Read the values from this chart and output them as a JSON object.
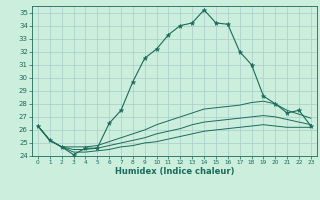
{
  "title": "",
  "xlabel": "Humidex (Indice chaleur)",
  "bg_color": "#cceedd",
  "grid_color": "#aacccc",
  "line_color": "#1a6b5a",
  "xlim": [
    -0.5,
    23.5
  ],
  "ylim": [
    24.0,
    35.5
  ],
  "yticks": [
    24,
    25,
    26,
    27,
    28,
    29,
    30,
    31,
    32,
    33,
    34,
    35
  ],
  "xticks": [
    0,
    1,
    2,
    3,
    4,
    5,
    6,
    7,
    8,
    9,
    10,
    11,
    12,
    13,
    14,
    15,
    16,
    17,
    18,
    19,
    20,
    21,
    22,
    23
  ],
  "line1_x": [
    0,
    1,
    2,
    3,
    4,
    5,
    6,
    7,
    8,
    9,
    10,
    11,
    12,
    13,
    14,
    15,
    16,
    17,
    18,
    19,
    20,
    21,
    22,
    23
  ],
  "line1_y": [
    26.3,
    25.2,
    24.7,
    24.1,
    24.6,
    24.6,
    26.5,
    27.5,
    29.7,
    31.5,
    32.2,
    33.3,
    34.0,
    34.2,
    35.2,
    34.2,
    34.1,
    32.0,
    31.0,
    28.6,
    28.0,
    27.3,
    27.5,
    26.3
  ],
  "line2_x": [
    0,
    1,
    2,
    3,
    4,
    5,
    6,
    7,
    8,
    9,
    10,
    11,
    12,
    13,
    14,
    15,
    16,
    17,
    18,
    19,
    20,
    21,
    22,
    23
  ],
  "line2_y": [
    26.3,
    25.2,
    24.7,
    24.7,
    24.7,
    24.8,
    25.1,
    25.4,
    25.7,
    26.0,
    26.4,
    26.7,
    27.0,
    27.3,
    27.6,
    27.7,
    27.8,
    27.9,
    28.1,
    28.2,
    28.0,
    27.5,
    27.2,
    26.9
  ],
  "line3_x": [
    0,
    1,
    2,
    3,
    4,
    5,
    6,
    7,
    8,
    9,
    10,
    11,
    12,
    13,
    14,
    15,
    16,
    17,
    18,
    19,
    20,
    21,
    22,
    23
  ],
  "line3_y": [
    26.3,
    25.2,
    24.7,
    24.5,
    24.5,
    24.6,
    24.8,
    25.0,
    25.2,
    25.4,
    25.7,
    25.9,
    26.1,
    26.4,
    26.6,
    26.7,
    26.8,
    26.9,
    27.0,
    27.1,
    27.0,
    26.8,
    26.6,
    26.4
  ],
  "line4_x": [
    0,
    1,
    2,
    3,
    4,
    5,
    6,
    7,
    8,
    9,
    10,
    11,
    12,
    13,
    14,
    15,
    16,
    17,
    18,
    19,
    20,
    21,
    22,
    23
  ],
  "line4_y": [
    26.3,
    25.2,
    24.7,
    24.3,
    24.3,
    24.4,
    24.5,
    24.7,
    24.8,
    25.0,
    25.1,
    25.3,
    25.5,
    25.7,
    25.9,
    26.0,
    26.1,
    26.2,
    26.3,
    26.4,
    26.3,
    26.2,
    26.2,
    26.2
  ]
}
